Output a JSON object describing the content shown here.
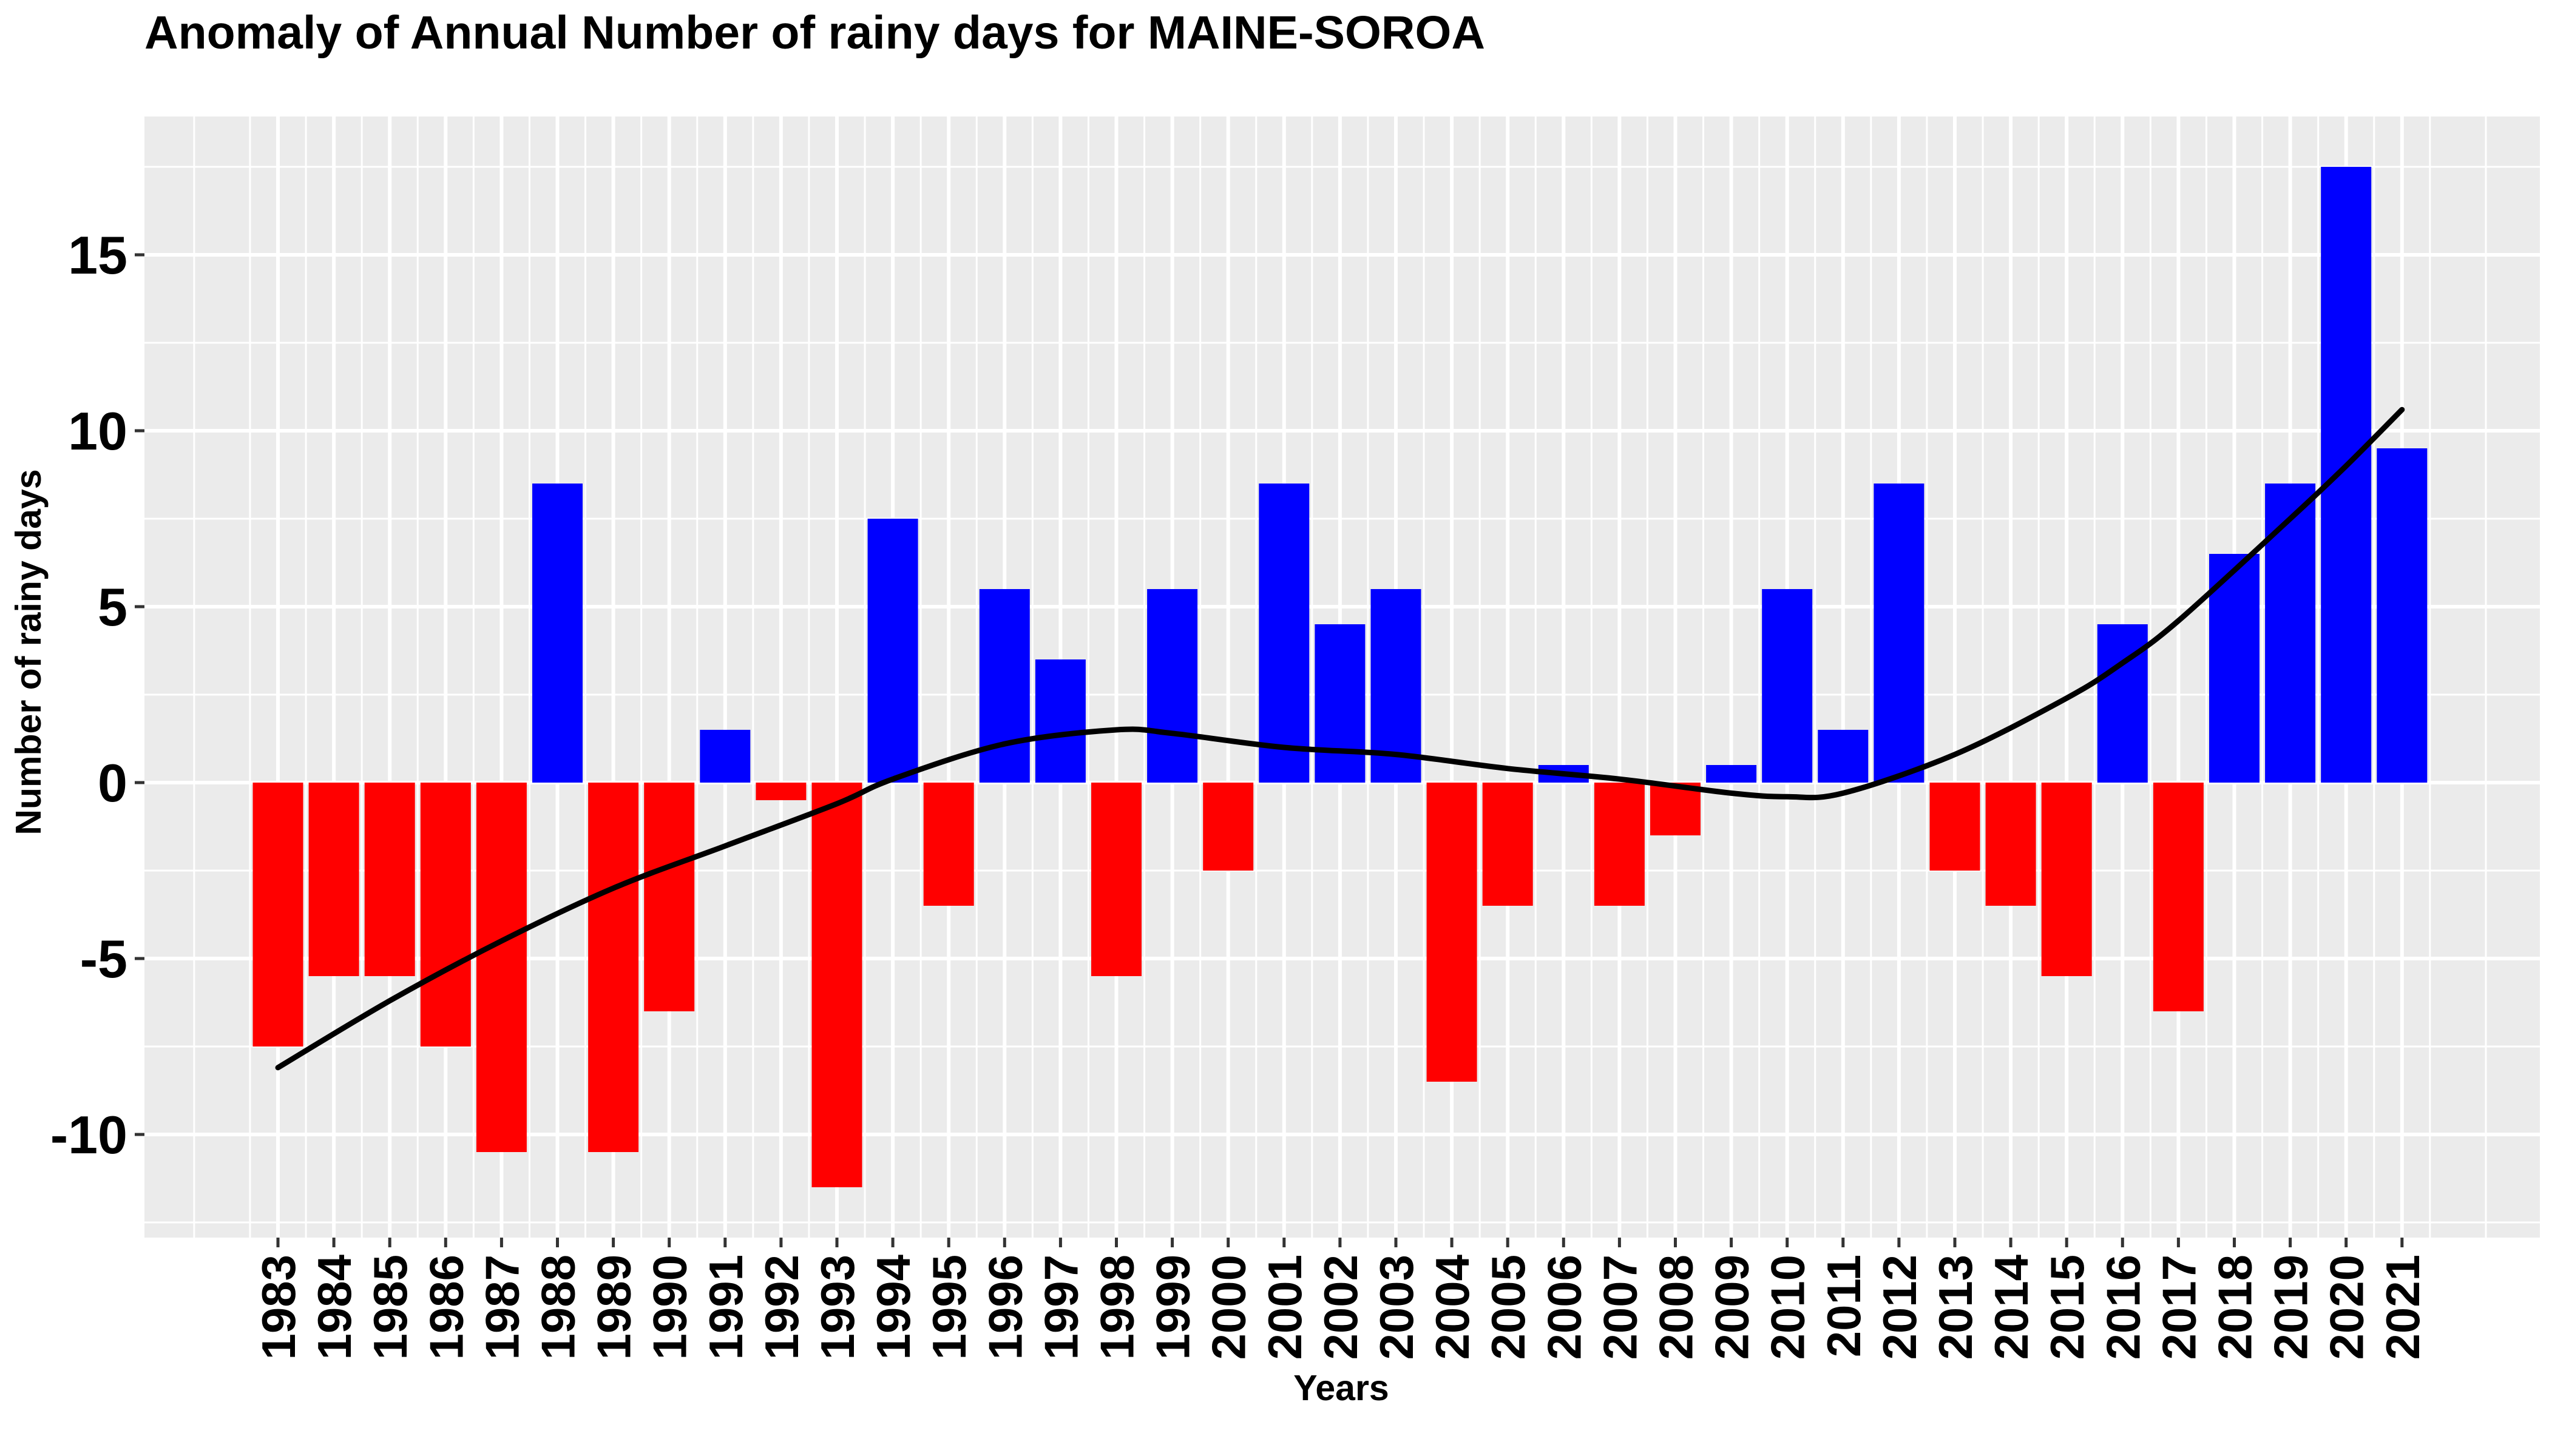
{
  "chart_data": {
    "type": "bar",
    "title": "Anomaly of Annual Number of rainy days for MAINE-SOROA",
    "xlabel": "Years",
    "ylabel": "Number of rainy days",
    "ylim": [
      -13,
      18
    ],
    "yticks": [
      -10,
      -5,
      0,
      5,
      10,
      15
    ],
    "ytick_labels": [
      "-10",
      "-5",
      "0",
      "5",
      "10",
      "15"
    ],
    "grid": true,
    "legend": "none",
    "colors": {
      "positive": "#0000ff",
      "negative": "#ff0000",
      "trend": "#000000",
      "panel": "#ebebeb",
      "grid": "#ffffff"
    },
    "categories": [
      "1983",
      "1984",
      "1985",
      "1986",
      "1987",
      "1988",
      "1989",
      "1990",
      "1991",
      "1992",
      "1993",
      "1994",
      "1995",
      "1996",
      "1997",
      "1998",
      "1999",
      "2000",
      "2001",
      "2002",
      "2003",
      "2004",
      "2005",
      "2006",
      "2007",
      "2008",
      "2009",
      "2010",
      "2011",
      "2012",
      "2013",
      "2014",
      "2015",
      "2016",
      "2017",
      "2018",
      "2019",
      "2020",
      "2021"
    ],
    "values": [
      -7.5,
      -5.5,
      -5.5,
      -7.5,
      -10.5,
      8.5,
      -10.5,
      -6.5,
      1.5,
      -0.5,
      -11.5,
      7.5,
      -3.5,
      5.5,
      3.5,
      -5.5,
      5.5,
      -2.5,
      8.5,
      4.5,
      5.5,
      -8.5,
      -3.5,
      0.5,
      -3.5,
      -1.5,
      0.5,
      5.5,
      1.5,
      8.5,
      -2.5,
      -3.5,
      -5.5,
      4.5,
      -6.5,
      6.5,
      8.5,
      17.5,
      9.5
    ],
    "trend": {
      "type": "line",
      "x": [
        "1983",
        "1985",
        "1987",
        "1989",
        "1991",
        "1993",
        "1994",
        "1996",
        "1998",
        "1999",
        "2001",
        "2003",
        "2005",
        "2007",
        "2009",
        "2010",
        "2011",
        "2013",
        "2015",
        "2016",
        "2017",
        "2019",
        "2020",
        "2021"
      ],
      "values": [
        -8.1,
        -6.2,
        -4.5,
        -3.0,
        -1.8,
        -0.6,
        0.1,
        1.1,
        1.5,
        1.4,
        1.0,
        0.8,
        0.4,
        0.1,
        -0.3,
        -0.4,
        -0.3,
        0.8,
        2.4,
        3.4,
        4.6,
        7.5,
        9.0,
        10.6
      ]
    }
  }
}
